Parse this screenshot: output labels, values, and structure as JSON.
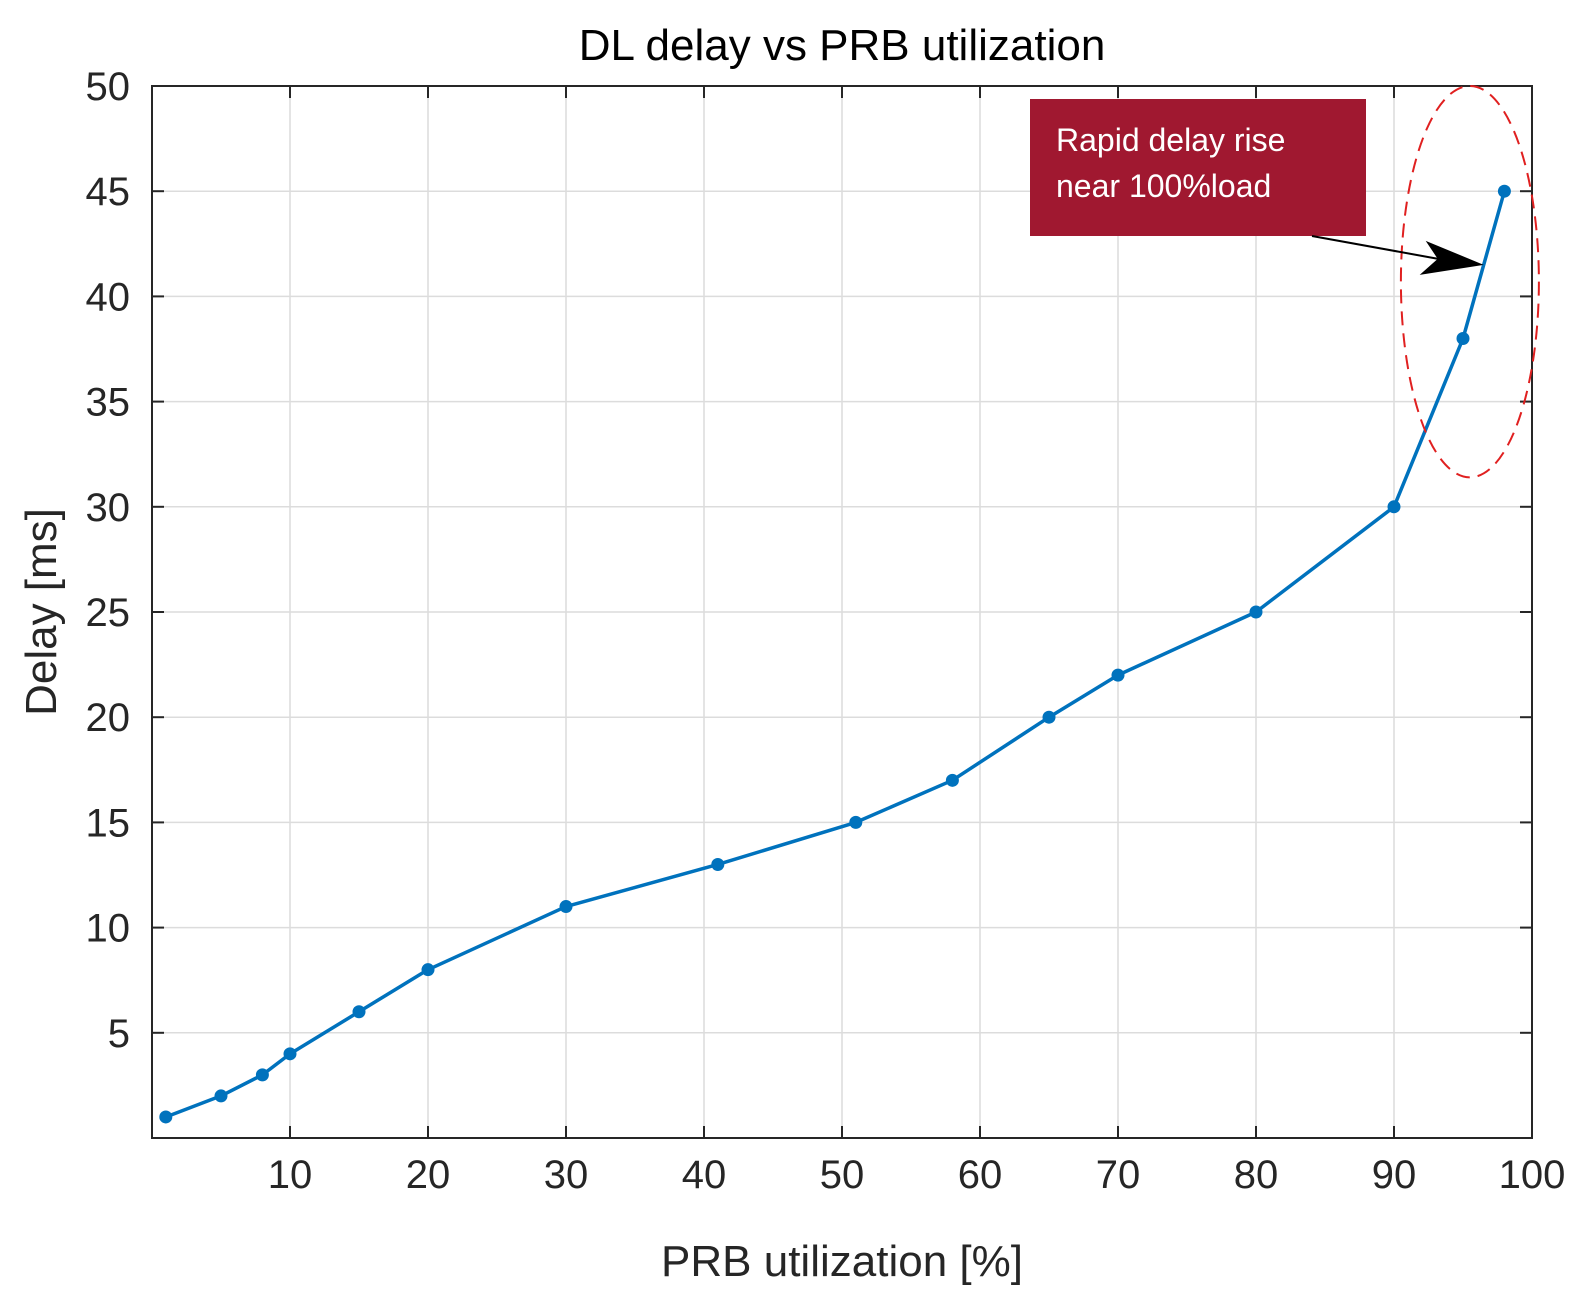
{
  "chart_data": {
    "type": "line",
    "title": "DL delay vs PRB utilization",
    "xlabel": "PRB utilization [%]",
    "ylabel": "Delay [ms]",
    "xlim": [
      0,
      100
    ],
    "ylim": [
      0,
      50
    ],
    "xticks": [
      10,
      20,
      30,
      40,
      50,
      60,
      70,
      80,
      90,
      100
    ],
    "yticks": [
      5,
      10,
      15,
      20,
      25,
      30,
      35,
      40,
      45,
      50
    ],
    "xtick_labels": [
      "10",
      "20",
      "30",
      "40",
      "50",
      "60",
      "70",
      "80",
      "90",
      "100"
    ],
    "ytick_labels": [
      "5",
      "10",
      "15",
      "20",
      "25",
      "30",
      "35",
      "40",
      "45",
      "50"
    ],
    "grid": true,
    "series": [
      {
        "name": "DL delay",
        "color": "#0072BD",
        "marker": "circle",
        "x": [
          1,
          5,
          8,
          10,
          15,
          20,
          30,
          41,
          51,
          58,
          65,
          70,
          80,
          90,
          95,
          98
        ],
        "y": [
          1,
          2,
          3,
          4,
          6,
          8,
          11,
          13,
          15,
          17,
          20,
          22,
          25,
          30,
          38,
          45
        ]
      }
    ],
    "annotations": [
      {
        "type": "textbox",
        "lines": [
          "Rapid delay rise",
          "near 100%load"
        ],
        "background": "#A01830",
        "text_color": "#ffffff",
        "arrow_to": [
          96.5,
          41.5
        ]
      },
      {
        "type": "ellipse",
        "style": "dashed",
        "color": "#E02020",
        "center": [
          95.5,
          40.7
        ],
        "rx_data": 5,
        "ry_data": 9.3
      }
    ]
  }
}
